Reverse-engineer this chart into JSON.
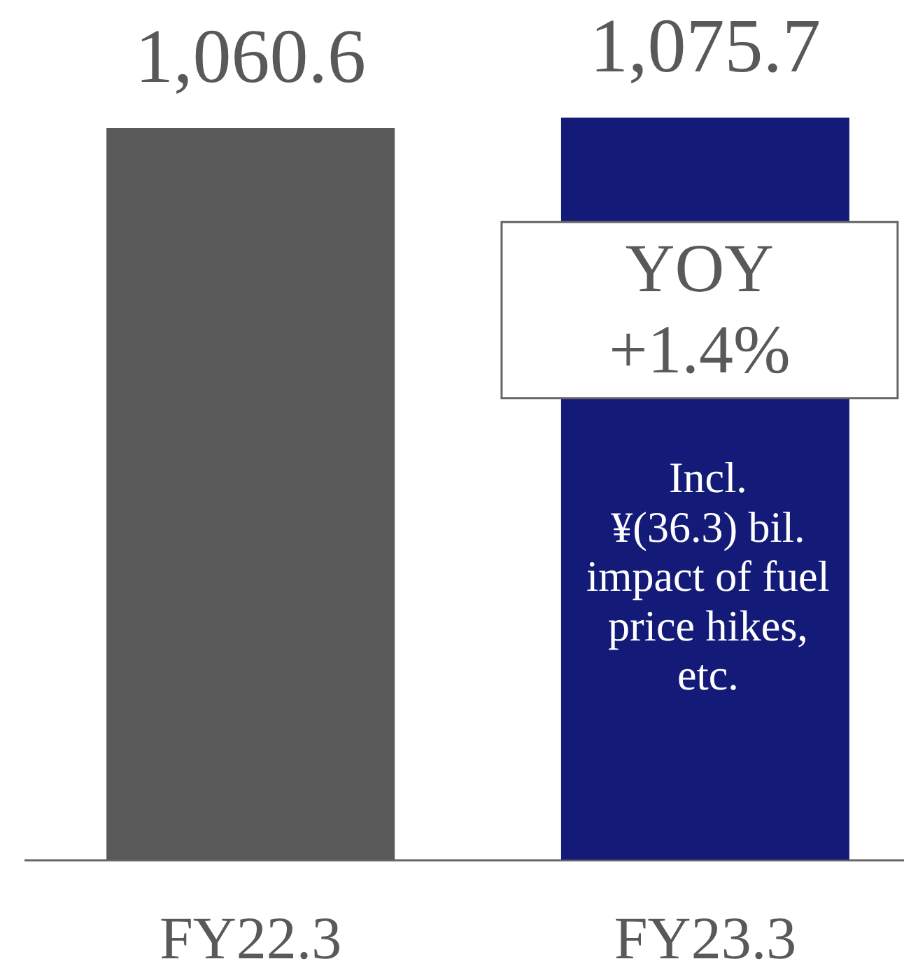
{
  "chart_data": {
    "type": "bar",
    "categories": [
      "FY22.3",
      "FY23.3"
    ],
    "values": [
      1060.6,
      1075.7
    ],
    "colors": [
      "#595959",
      "#131a78"
    ],
    "value_labels": [
      "1,060.6",
      "1,075.7"
    ],
    "tick_labels": "x",
    "annotations": [
      "YOY\n+1.4%",
      "Incl.\n¥(36.3) bil.\nimpact of fuel\nprice hikes,\netc."
    ]
  }
}
